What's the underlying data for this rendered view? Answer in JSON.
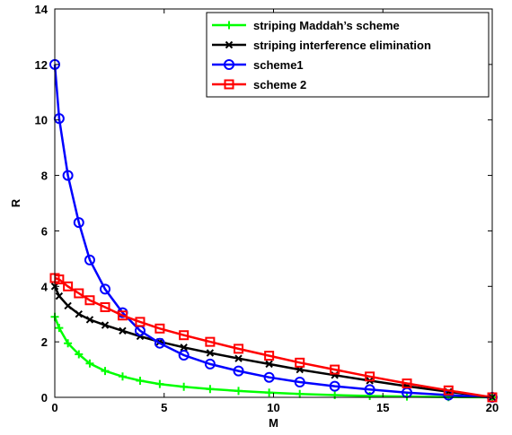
{
  "chart_data": {
    "type": "line",
    "xlabel": "M",
    "ylabel": "R",
    "xlim": [
      0,
      20
    ],
    "ylim": [
      0,
      14
    ],
    "xticks": [
      0,
      5,
      10,
      15,
      20
    ],
    "yticks": [
      0,
      2,
      4,
      6,
      8,
      10,
      12,
      14
    ],
    "grid": false,
    "legend_position": "top-right",
    "series": [
      {
        "name": "striping Maddah’s scheme",
        "color": "#00ff00",
        "marker": "plus",
        "x": [
          0,
          0.2,
          0.6,
          1.1,
          1.6,
          2.3,
          3.1,
          3.9,
          4.8,
          5.9,
          7.1,
          8.4,
          9.8,
          11.2,
          12.8,
          14.4,
          16.1,
          18.0,
          20.0
        ],
        "y": [
          2.9,
          2.5,
          1.95,
          1.55,
          1.22,
          0.95,
          0.75,
          0.6,
          0.48,
          0.38,
          0.3,
          0.23,
          0.17,
          0.12,
          0.08,
          0.05,
          0.03,
          0.01,
          0.0
        ]
      },
      {
        "name": "striping interference elimination",
        "color": "#000000",
        "marker": "x",
        "x": [
          0,
          0.2,
          0.6,
          1.1,
          1.6,
          2.3,
          3.1,
          3.9,
          4.8,
          5.9,
          7.1,
          8.4,
          9.8,
          11.2,
          12.8,
          14.4,
          16.1,
          18.0,
          20.0
        ],
        "y": [
          4.0,
          3.65,
          3.3,
          3.0,
          2.8,
          2.6,
          2.4,
          2.2,
          2.0,
          1.8,
          1.6,
          1.4,
          1.2,
          1.0,
          0.8,
          0.6,
          0.4,
          0.2,
          0.0
        ]
      },
      {
        "name": "scheme1",
        "color": "#0000ff",
        "marker": "circle",
        "x": [
          0,
          0.2,
          0.6,
          1.1,
          1.6,
          2.3,
          3.1,
          3.9,
          4.8,
          5.9,
          7.1,
          8.4,
          9.8,
          11.2,
          12.8,
          14.4,
          16.1,
          18.0,
          20.0
        ],
        "y": [
          12.0,
          10.05,
          8.0,
          6.3,
          4.95,
          3.9,
          3.05,
          2.4,
          1.95,
          1.52,
          1.2,
          0.95,
          0.72,
          0.55,
          0.4,
          0.28,
          0.17,
          0.08,
          0.0
        ]
      },
      {
        "name": "scheme 2",
        "color": "#ff0000",
        "marker": "square",
        "x": [
          0,
          0.2,
          0.6,
          1.1,
          1.6,
          2.3,
          3.1,
          3.9,
          4.8,
          5.9,
          7.1,
          8.4,
          9.8,
          11.2,
          12.8,
          14.4,
          16.1,
          18.0,
          20.0
        ],
        "y": [
          4.3,
          4.25,
          4.0,
          3.75,
          3.5,
          3.25,
          2.95,
          2.72,
          2.48,
          2.24,
          2.0,
          1.75,
          1.5,
          1.25,
          1.0,
          0.75,
          0.5,
          0.25,
          0.0
        ]
      }
    ]
  }
}
